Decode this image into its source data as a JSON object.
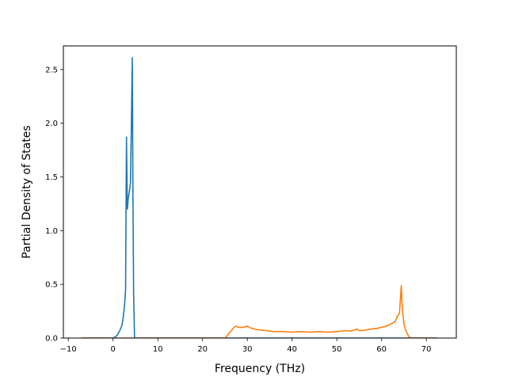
{
  "chart_data": {
    "type": "line",
    "title": "",
    "xlabel": "Frequency (THz)",
    "ylabel": "Partial Density of States",
    "xlim": [
      -11.1,
      76.7
    ],
    "ylim": [
      0,
      2.72
    ],
    "xticks": [
      -10,
      0,
      10,
      20,
      30,
      40,
      50,
      60,
      70
    ],
    "xtick_labels": [
      "−10",
      "0",
      "10",
      "20",
      "30",
      "40",
      "50",
      "60",
      "70"
    ],
    "yticks": [
      0.0,
      0.5,
      1.0,
      1.5,
      2.0,
      2.5
    ],
    "ytick_labels": [
      "0.0",
      "0.5",
      "1.0",
      "1.5",
      "2.0",
      "2.5"
    ],
    "grid": false,
    "legend": "none",
    "series": [
      {
        "color": "#1f77b4",
        "x": [
          -7.0,
          0.0,
          0.5,
          1.0,
          1.5,
          2.0,
          2.3,
          2.6,
          2.8,
          3.0,
          3.2,
          3.4,
          3.6,
          3.9,
          4.1,
          4.3,
          4.45,
          4.6,
          4.8,
          10.0,
          20.0,
          30.0,
          40.0,
          50.0,
          60.0,
          72.5
        ],
        "y": [
          0.0,
          0.0,
          0.01,
          0.03,
          0.07,
          0.12,
          0.2,
          0.32,
          0.45,
          1.87,
          1.2,
          1.3,
          1.35,
          1.45,
          2.0,
          2.61,
          1.3,
          0.4,
          0.0,
          0.0,
          0.0,
          0.0,
          0.0,
          0.0,
          0.0,
          0.0
        ]
      },
      {
        "color": "#ff7f0e",
        "x": [
          -7.0,
          0.0,
          10.0,
          20.0,
          25.0,
          25.5,
          26.0,
          26.5,
          27.0,
          27.5,
          28.0,
          29.0,
          30.0,
          30.5,
          31.0,
          32.0,
          33.0,
          34.0,
          35.0,
          36.0,
          38.0,
          40.0,
          42.0,
          44.0,
          46.0,
          48.0,
          50.0,
          51.0,
          52.0,
          53.0,
          54.0,
          54.5,
          55.0,
          56.0,
          57.0,
          58.0,
          59.0,
          60.0,
          61.0,
          62.0,
          62.5,
          63.0,
          63.5,
          64.0,
          64.4,
          64.6,
          65.0,
          65.5,
          66.0,
          66.5,
          67.0,
          72.5
        ],
        "y": [
          0.0,
          0.0,
          0.0,
          0.0,
          0.0,
          0.02,
          0.05,
          0.07,
          0.1,
          0.11,
          0.1,
          0.1,
          0.11,
          0.1,
          0.09,
          0.08,
          0.075,
          0.07,
          0.065,
          0.06,
          0.06,
          0.055,
          0.06,
          0.055,
          0.06,
          0.055,
          0.06,
          0.065,
          0.07,
          0.065,
          0.075,
          0.085,
          0.07,
          0.07,
          0.08,
          0.085,
          0.09,
          0.1,
          0.11,
          0.13,
          0.14,
          0.15,
          0.2,
          0.23,
          0.49,
          0.3,
          0.13,
          0.06,
          0.02,
          0.0,
          0.0,
          0.0
        ]
      }
    ]
  }
}
